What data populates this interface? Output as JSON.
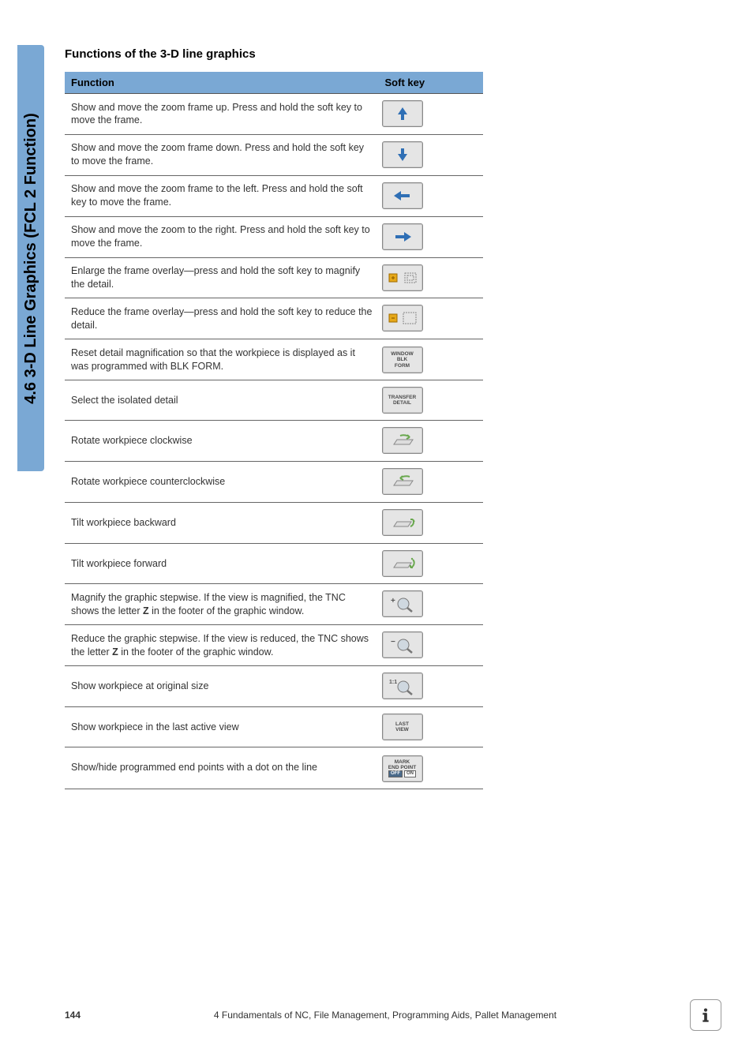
{
  "sideTab": "4.6 3-D Line Graphics (FCL 2 Function)",
  "heading": "Functions of the 3-D line graphics",
  "table": {
    "headers": [
      "Function",
      "Soft key"
    ],
    "rows": [
      {
        "text": "Show and move the zoom frame up. Press and hold the soft key to move the frame.",
        "icon": "arrow-up"
      },
      {
        "text": "Show and move the zoom frame down. Press and hold the soft key to move the frame.",
        "icon": "arrow-down"
      },
      {
        "text": "Show and move the zoom frame to the left. Press and hold the soft key to move the frame.",
        "icon": "arrow-left"
      },
      {
        "text": "Show and move the zoom to the right. Press and hold the soft key to move the frame.",
        "icon": "arrow-right"
      },
      {
        "text": "Enlarge the frame overlay—press and hold the soft key to magnify the detail.",
        "icon": "enlarge"
      },
      {
        "text": "Reduce the frame overlay—press and hold the soft key to reduce the detail.",
        "icon": "reduce"
      },
      {
        "text": "Reset detail magnification so that the workpiece is displayed as it was programmed with BLK FORM.",
        "icon": "window-blk"
      },
      {
        "text": "Select the isolated detail",
        "icon": "transfer-detail"
      },
      {
        "text": "Rotate workpiece clockwise",
        "icon": "rotate-cw"
      },
      {
        "text": "Rotate workpiece counterclockwise",
        "icon": "rotate-ccw"
      },
      {
        "text": "Tilt workpiece backward",
        "icon": "tilt-back"
      },
      {
        "text": "Tilt workpiece forward",
        "icon": "tilt-forward"
      },
      {
        "text_html": "Magnify the graphic stepwise. If the view is magnified, the TNC shows the letter <b>Z</b> in the footer of the graphic window.",
        "icon": "magnify-step"
      },
      {
        "text_html": "Reduce the graphic stepwise. If the view is reduced, the TNC shows the letter <b>Z</b> in the footer of the graphic window.",
        "icon": "reduce-step"
      },
      {
        "text": "Show workpiece at original size",
        "icon": "one-to-one"
      },
      {
        "text": "Show workpiece in the last active view",
        "icon": "last-view"
      },
      {
        "text": "Show/hide programmed end points with a dot on the line",
        "icon": "mark-endpoint"
      }
    ]
  },
  "iconLabels": {
    "window-blk": "WINDOW\nBLK\nFORM",
    "transfer-detail": "TRANSFER\nDETAIL",
    "last-view": "LAST\nVIEW",
    "mark-endpoint": "MARK\nEND POINT",
    "off": "OFF",
    "on": "ON",
    "one-to-one": "1:1"
  },
  "footer": {
    "page": "144",
    "chapter": "4 Fundamentals of NC, File Management, Programming Aids, Pallet Management"
  },
  "colors": {
    "tabBg": "#7aa8d4",
    "arrowBlue": "#2f6fb5",
    "arrowYellow": "#e6a818",
    "rotateGreen": "#6aa84f",
    "keyBg": "#e5e5e5"
  }
}
